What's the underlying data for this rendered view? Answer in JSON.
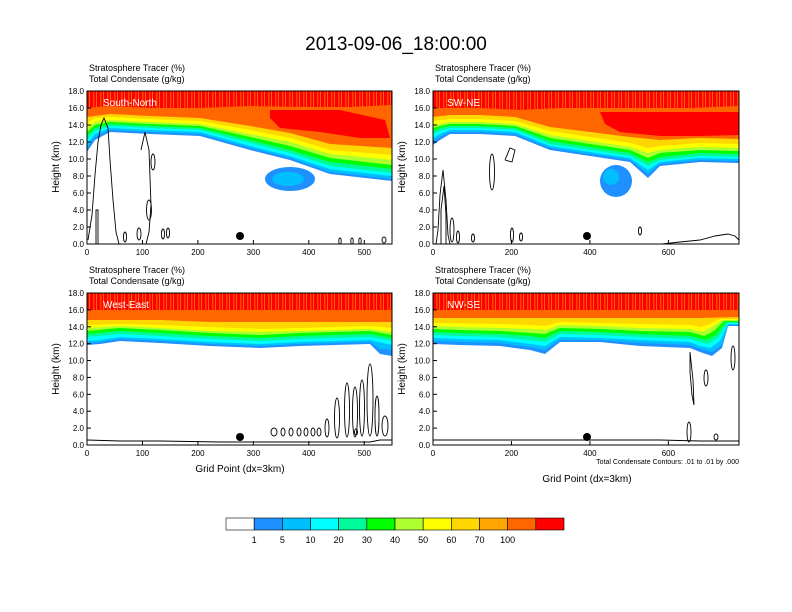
{
  "figure": {
    "title": "2013-09-06_18:00:00",
    "contour_note": "Total Condensate Contours: .01 to .01 by .000"
  },
  "colorbar": {
    "labels": [
      "1",
      "5",
      "10",
      "20",
      "30",
      "40",
      "50",
      "60",
      "70",
      "100"
    ],
    "colors": [
      "#ffffff",
      "#1e90ff",
      "#00bfff",
      "#00ffff",
      "#00fa9a",
      "#00ff00",
      "#adff2f",
      "#ffff00",
      "#ffd700",
      "#ffa500",
      "#ff6600",
      "#ff0000"
    ]
  },
  "panels": [
    {
      "label": "South-North",
      "title_line1": "Stratosphere Tracer   (%)",
      "title_line2": "Total Condensate   (g/kg)",
      "ylabel": "Height (km)",
      "xlabel": "",
      "xticks": [
        "0",
        "100",
        "200",
        "300",
        "400",
        "500"
      ],
      "yticks": [
        "0.0",
        "2.0",
        "4.0",
        "6.0",
        "8.0",
        "10.0",
        "12.0",
        "14.0",
        "16.0",
        "18.0"
      ]
    },
    {
      "label": "SW-NE",
      "title_line1": "Stratosphere Tracer   (%)",
      "title_line2": "Total Condensate   (g/kg)",
      "ylabel": "Height (km)",
      "xlabel": "",
      "xticks": [
        "0",
        "200",
        "400",
        "600"
      ],
      "yticks": [
        "0.0",
        "2.0",
        "4.0",
        "6.0",
        "8.0",
        "10.0",
        "12.0",
        "14.0",
        "16.0",
        "18.0"
      ]
    },
    {
      "label": "West-East",
      "title_line1": "Stratosphere Tracer   (%)",
      "title_line2": "Total Condensate   (g/kg)",
      "ylabel": "Height (km)",
      "xlabel": "Grid Point (dx=3km)",
      "xticks": [
        "0",
        "100",
        "200",
        "300",
        "400",
        "500"
      ],
      "yticks": [
        "0.0",
        "2.0",
        "4.0",
        "6.0",
        "8.0",
        "10.0",
        "12.0",
        "14.0",
        "16.0",
        "18.0"
      ]
    },
    {
      "label": "NW-SE",
      "title_line1": "Stratosphere Tracer   (%)",
      "title_line2": "Total Condensate   (g/kg)",
      "ylabel": "Height (km)",
      "xlabel": "Grid Point (dx=3km)",
      "xticks": [
        "0",
        "200",
        "400",
        "600"
      ],
      "yticks": [
        "0.0",
        "2.0",
        "4.0",
        "6.0",
        "8.0",
        "10.0",
        "12.0",
        "14.0",
        "16.0",
        "18.0"
      ]
    }
  ],
  "chart_data": [
    {
      "type": "heatmap",
      "title": "Stratosphere Tracer (%) / Total Condensate (g/kg)",
      "panel": "South-North",
      "xlim": [
        0,
        550
      ],
      "ylim": [
        0,
        18
      ],
      "ylabel": "Height (km)",
      "contour_levels": [
        1,
        5,
        10,
        20,
        30,
        40,
        50,
        60,
        70,
        100
      ],
      "tracer_base_km": {
        "x": [
          0,
          100,
          200,
          300,
          400,
          500,
          550
        ],
        "y": [
          11.8,
          13.6,
          13.4,
          11.0,
          10.2,
          8.9,
          9.2
        ]
      },
      "marker": {
        "x": 275,
        "y": 1.1
      }
    },
    {
      "type": "heatmap",
      "title": "Stratosphere Tracer (%) / Total Condensate (g/kg)",
      "panel": "SW-NE",
      "xlim": [
        0,
        780
      ],
      "ylim": [
        0,
        18
      ],
      "ylabel": "Height (km)",
      "contour_levels": [
        1,
        5,
        10,
        20,
        30,
        40,
        50,
        60,
        70,
        100
      ],
      "tracer_base_km": {
        "x": [
          0,
          100,
          200,
          300,
          400,
          500,
          600,
          700,
          780
        ],
        "y": [
          12.2,
          13.0,
          13.4,
          12.2,
          10.6,
          9.8,
          10.2,
          10.4,
          10.4
        ]
      },
      "marker": {
        "x": 390,
        "y": 1.1
      }
    },
    {
      "type": "heatmap",
      "title": "Stratosphere Tracer (%) / Total Condensate (g/kg)",
      "panel": "West-East",
      "xlim": [
        0,
        550
      ],
      "ylim": [
        0,
        18
      ],
      "ylabel": "Height (km)",
      "xlabel": "Grid Point (dx=3km)",
      "contour_levels": [
        1,
        5,
        10,
        20,
        30,
        40,
        50,
        60,
        70,
        100
      ],
      "tracer_base_km": {
        "x": [
          0,
          100,
          200,
          300,
          400,
          500,
          550
        ],
        "y": [
          12.0,
          12.6,
          12.8,
          12.2,
          12.2,
          11.6,
          11.0
        ]
      },
      "marker": {
        "x": 275,
        "y": 1.1
      }
    },
    {
      "type": "heatmap",
      "title": "Stratosphere Tracer (%) / Total Condensate (g/kg)",
      "panel": "NW-SE",
      "xlim": [
        0,
        780
      ],
      "ylim": [
        0,
        18
      ],
      "ylabel": "Height (km)",
      "xlabel": "Grid Point (dx=3km)",
      "contour_levels": [
        1,
        5,
        10,
        20,
        30,
        40,
        50,
        60,
        70,
        100
      ],
      "tracer_base_km": {
        "x": [
          0,
          100,
          200,
          300,
          400,
          500,
          600,
          700,
          780
        ],
        "y": [
          12.4,
          12.4,
          12.2,
          11.2,
          11.8,
          12.4,
          12.0,
          11.0,
          13.8
        ]
      },
      "marker": {
        "x": 390,
        "y": 1.1
      }
    }
  ]
}
